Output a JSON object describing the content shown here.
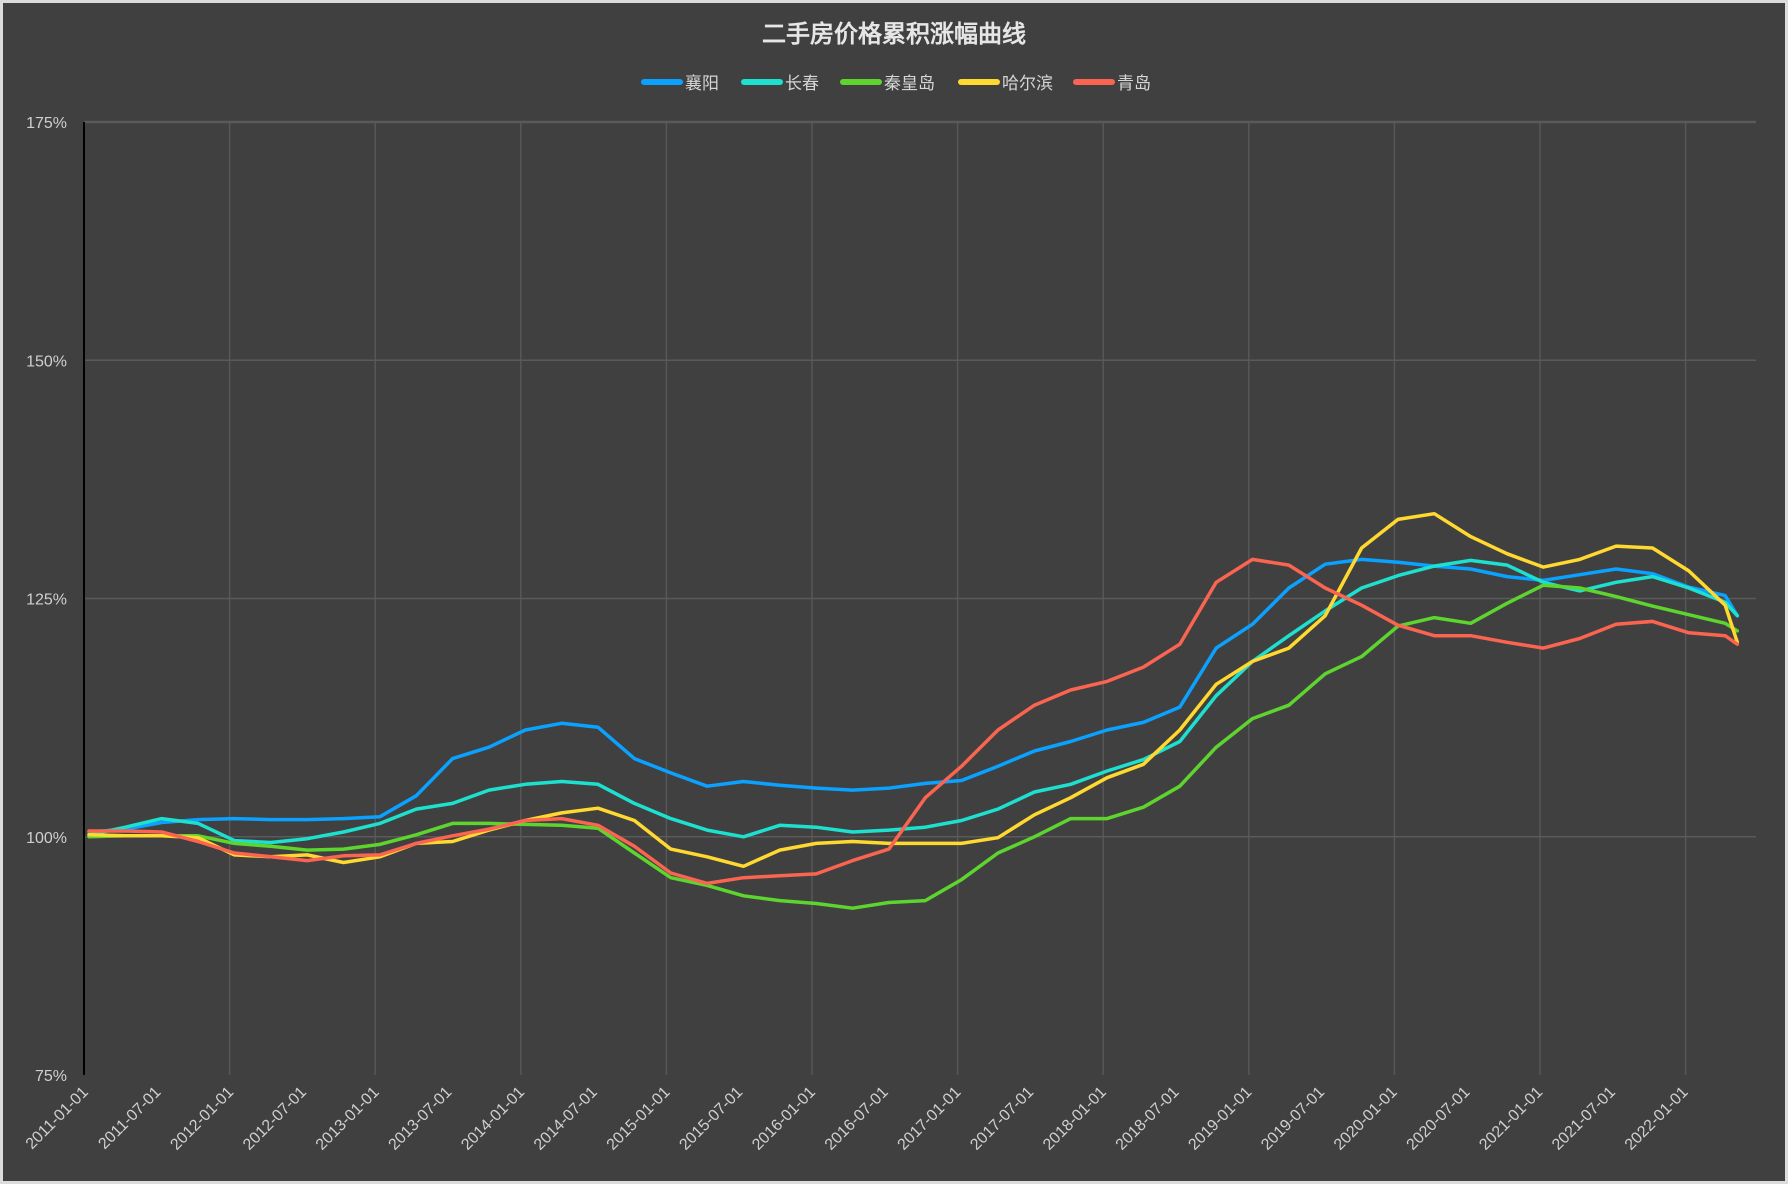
{
  "chart_data": {
    "type": "line",
    "title": "二手房价格累积涨幅曲线",
    "xlabel": "",
    "ylabel": "",
    "ylim": [
      75,
      175
    ],
    "y_ticks": [
      "75%",
      "100%",
      "125%",
      "150%",
      "175%"
    ],
    "y_tick_values": [
      75,
      100,
      125,
      150,
      175
    ],
    "x_tick_labels": [
      "2011-01-01",
      "2011-07-01",
      "2012-01-01",
      "2012-07-01",
      "2013-01-01",
      "2013-07-01",
      "2014-01-01",
      "2014-07-01",
      "2015-01-01",
      "2015-07-01",
      "2016-01-01",
      "2016-07-01",
      "2017-01-01",
      "2017-07-01",
      "2018-01-01",
      "2018-07-01",
      "2019-01-01",
      "2019-07-01",
      "2020-01-01",
      "2020-07-01",
      "2021-01-01",
      "2021-07-01",
      "2022-01-01"
    ],
    "x_months": [
      0,
      3,
      6,
      9,
      12,
      15,
      18,
      21,
      24,
      27,
      30,
      33,
      36,
      39,
      42,
      45,
      48,
      51,
      54,
      57,
      60,
      63,
      66,
      69,
      72,
      75,
      78,
      81,
      84,
      87,
      90,
      93,
      96,
      99,
      102,
      105,
      108,
      111,
      114,
      117,
      120,
      123,
      126,
      129,
      132,
      135,
      136
    ],
    "x_unit": "months since 2011-01",
    "grid": true,
    "legend_position": "top-center",
    "series": [
      {
        "name": "襄阳",
        "color": "#0aa1ff",
        "values": [
          100.5,
          100.8,
          101.5,
          101.8,
          101.9,
          101.8,
          101.8,
          101.9,
          102.1,
          104.3,
          108.2,
          109.4,
          111.2,
          111.9,
          111.5,
          108.2,
          106.7,
          105.3,
          105.8,
          105.4,
          105.1,
          104.9,
          105.1,
          105.6,
          105.9,
          107.4,
          109.0,
          110.0,
          111.2,
          112.0,
          113.6,
          119.8,
          122.3,
          126.1,
          128.6,
          129.1,
          128.8,
          128.4,
          128.1,
          127.3,
          126.9,
          127.5,
          128.1,
          127.6,
          126.2,
          125.3,
          123.2
        ]
      },
      {
        "name": "长春",
        "color": "#1de0cf",
        "values": [
          100.2,
          101.0,
          101.9,
          101.4,
          99.6,
          99.4,
          99.8,
          100.5,
          101.4,
          102.9,
          103.5,
          104.9,
          105.5,
          105.8,
          105.5,
          103.5,
          101.9,
          100.7,
          100.0,
          101.2,
          101.0,
          100.5,
          100.7,
          101.0,
          101.7,
          102.9,
          104.7,
          105.5,
          106.9,
          108.1,
          110.0,
          114.8,
          118.4,
          121.1,
          123.7,
          126.1,
          127.4,
          128.4,
          129.0,
          128.5,
          126.7,
          125.8,
          126.7,
          127.3,
          126.1,
          124.6,
          123.2
        ]
      },
      {
        "name": "秦皇岛",
        "color": "#5ed42f",
        "values": [
          100.0,
          100.1,
          100.1,
          100.1,
          99.3,
          99.0,
          98.6,
          98.7,
          99.2,
          100.2,
          101.4,
          101.4,
          101.3,
          101.2,
          100.9,
          98.3,
          95.7,
          94.9,
          93.8,
          93.3,
          93.0,
          92.5,
          93.1,
          93.3,
          95.5,
          98.3,
          100.0,
          101.9,
          101.9,
          103.1,
          105.3,
          109.4,
          112.4,
          113.8,
          117.1,
          118.9,
          122.1,
          123.0,
          122.4,
          124.5,
          126.4,
          126.1,
          125.2,
          124.2,
          123.3,
          122.4,
          121.6
        ]
      },
      {
        "name": "哈尔滨",
        "color": "#ffd92f",
        "values": [
          100.2,
          100.1,
          100.1,
          99.9,
          98.1,
          97.9,
          98.1,
          97.3,
          97.9,
          99.3,
          99.5,
          100.7,
          101.7,
          102.5,
          103.0,
          101.7,
          98.7,
          97.9,
          96.9,
          98.6,
          99.3,
          99.5,
          99.3,
          99.3,
          99.3,
          99.9,
          102.3,
          104.1,
          106.2,
          107.6,
          111.2,
          116.0,
          118.4,
          119.8,
          123.2,
          130.3,
          133.3,
          133.9,
          131.5,
          129.7,
          128.3,
          129.1,
          130.5,
          130.3,
          127.9,
          124.3,
          120.4
        ]
      },
      {
        "name": "青岛",
        "color": "#fa6450",
        "values": [
          100.6,
          100.6,
          100.5,
          99.5,
          98.3,
          97.9,
          97.5,
          98.0,
          98.1,
          99.3,
          100.1,
          100.8,
          101.7,
          101.9,
          101.2,
          99.0,
          96.2,
          95.1,
          95.7,
          95.9,
          96.1,
          97.5,
          98.7,
          104.1,
          107.4,
          111.2,
          113.8,
          115.4,
          116.3,
          117.8,
          120.2,
          126.7,
          129.1,
          128.5,
          126.1,
          124.3,
          122.2,
          121.1,
          121.1,
          120.4,
          119.8,
          120.8,
          122.3,
          122.6,
          121.4,
          121.1,
          120.2
        ]
      }
    ]
  }
}
